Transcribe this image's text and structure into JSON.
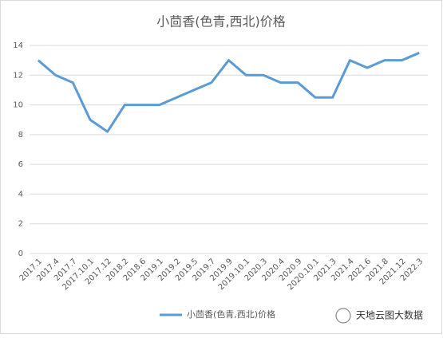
{
  "chart_data": {
    "type": "line",
    "title": "小茴香(色青,西北)价格",
    "categories": [
      "2017.1",
      "2017.4",
      "2017.7",
      "2017.10.1",
      "2017.12",
      "2018.2",
      "2018.6",
      "2019.1",
      "2019.2",
      "2019.5",
      "2019.7",
      "2019.9",
      "2019.10.1",
      "2020.3",
      "2020.4",
      "2020.9",
      "2020.10.1",
      "2021.3",
      "2021.4",
      "2021.6",
      "2021.8",
      "2021.12",
      "2022.3"
    ],
    "series": [
      {
        "name": "小茴香(色青,西北)价格",
        "color": "#5b9bd5",
        "values": [
          13,
          12,
          11.5,
          9,
          8.2,
          10,
          10,
          10,
          10.5,
          11,
          11.5,
          13,
          12,
          12,
          11.5,
          11.5,
          10.5,
          10.5,
          13,
          12.5,
          13,
          13,
          13.5
        ]
      }
    ],
    "ylim": [
      0,
      14
    ],
    "yticks": [
      0,
      2,
      4,
      6,
      8,
      10,
      12,
      14
    ],
    "grid": true,
    "legend": "bottom",
    "watermark": "天地云图大数据"
  }
}
